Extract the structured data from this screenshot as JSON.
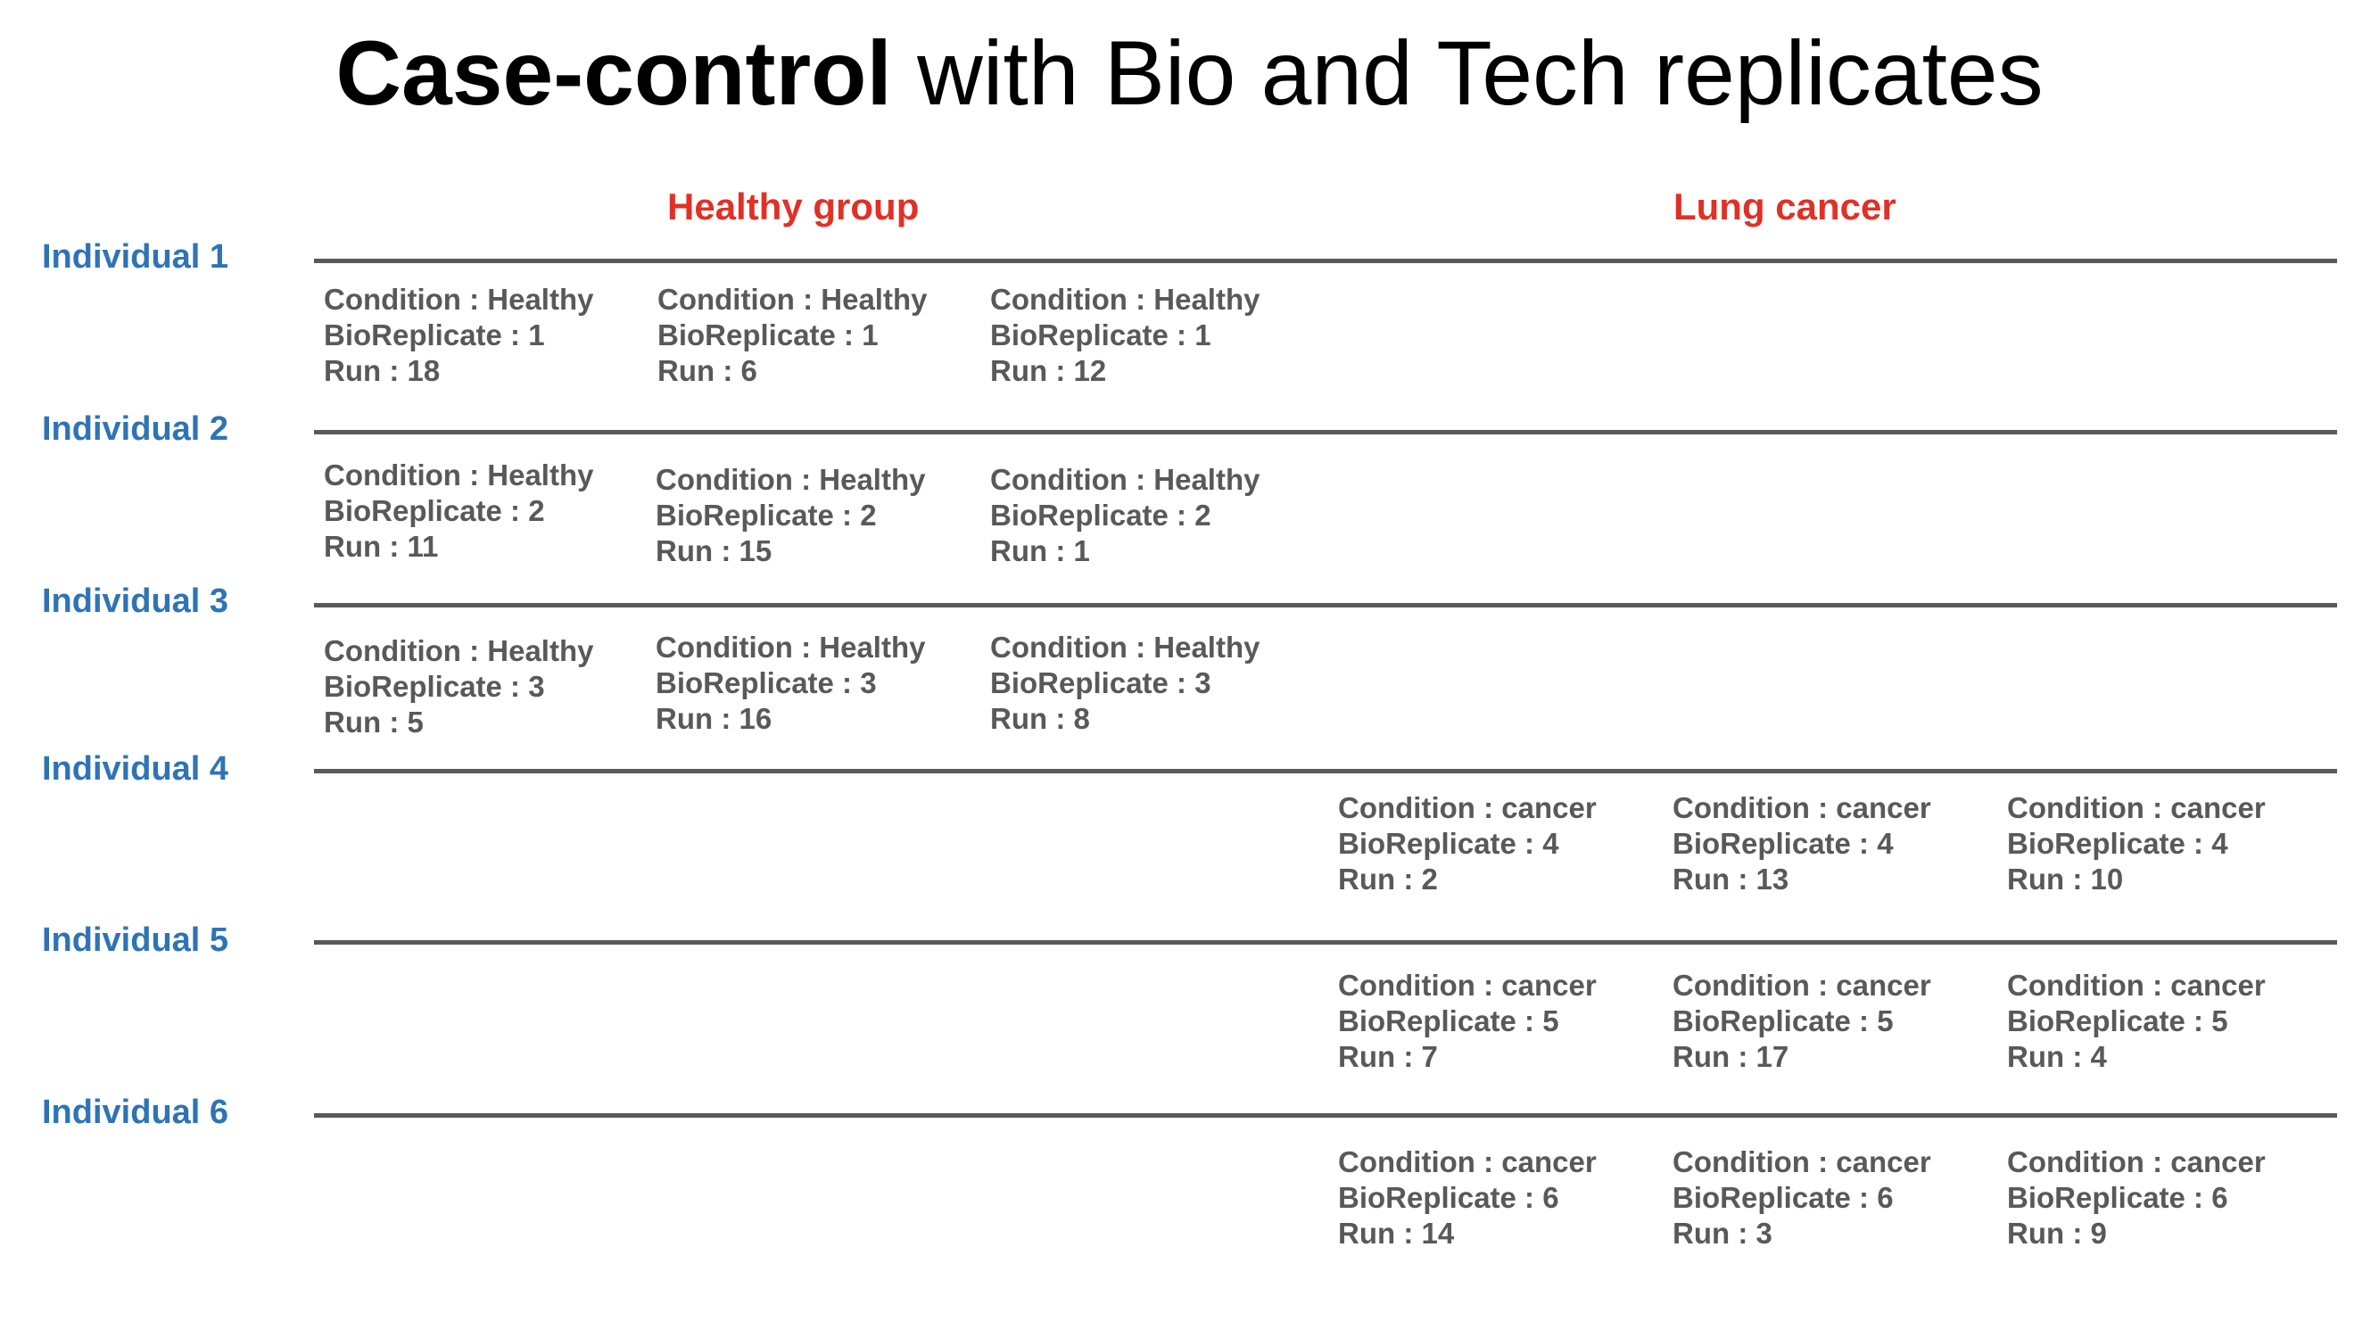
{
  "title": {
    "bold": "Case-control",
    "rest": " with Bio and Tech replicates"
  },
  "groups": {
    "healthy": "Healthy group",
    "cancer": "Lung cancer"
  },
  "individuals": [
    "Individual 1",
    "Individual 2",
    "Individual 3",
    "Individual 4",
    "Individual 5",
    "Individual 6"
  ],
  "cells": [
    {
      "condition": "Condition : Healthy",
      "bio": "BioReplicate : 1",
      "run": "Run : 18"
    },
    {
      "condition": "Condition : Healthy",
      "bio": "BioReplicate : 1",
      "run": "Run : 6"
    },
    {
      "condition": "Condition : Healthy",
      "bio": "BioReplicate : 1",
      "run": "Run : 12"
    },
    {
      "condition": "Condition : Healthy",
      "bio": "BioReplicate : 2",
      "run": "Run : 11"
    },
    {
      "condition": "Condition : Healthy",
      "bio": "BioReplicate : 2",
      "run": "Run : 15"
    },
    {
      "condition": "Condition : Healthy",
      "bio": "BioReplicate : 2",
      "run": "Run : 1"
    },
    {
      "condition": "Condition : Healthy",
      "bio": "BioReplicate : 3",
      "run": "Run : 5"
    },
    {
      "condition": "Condition : Healthy",
      "bio": "BioReplicate : 3",
      "run": "Run : 16"
    },
    {
      "condition": "Condition : Healthy",
      "bio": "BioReplicate : 3",
      "run": "Run : 8"
    },
    {
      "condition": "Condition : cancer",
      "bio": "BioReplicate : 4",
      "run": "Run : 2"
    },
    {
      "condition": "Condition : cancer",
      "bio": "BioReplicate : 4",
      "run": "Run : 13"
    },
    {
      "condition": "Condition : cancer",
      "bio": "BioReplicate : 4",
      "run": "Run : 10"
    },
    {
      "condition": "Condition : cancer",
      "bio": "BioReplicate : 5",
      "run": "Run : 7"
    },
    {
      "condition": "Condition : cancer",
      "bio": "BioReplicate : 5",
      "run": "Run : 17"
    },
    {
      "condition": "Condition : cancer",
      "bio": "BioReplicate : 5",
      "run": "Run : 4"
    },
    {
      "condition": "Condition : cancer",
      "bio": "BioReplicate : 6",
      "run": "Run : 14"
    },
    {
      "condition": "Condition : cancer",
      "bio": "BioReplicate : 6",
      "run": "Run : 3"
    },
    {
      "condition": "Condition : cancer",
      "bio": "BioReplicate : 6",
      "run": "Run : 9"
    }
  ]
}
